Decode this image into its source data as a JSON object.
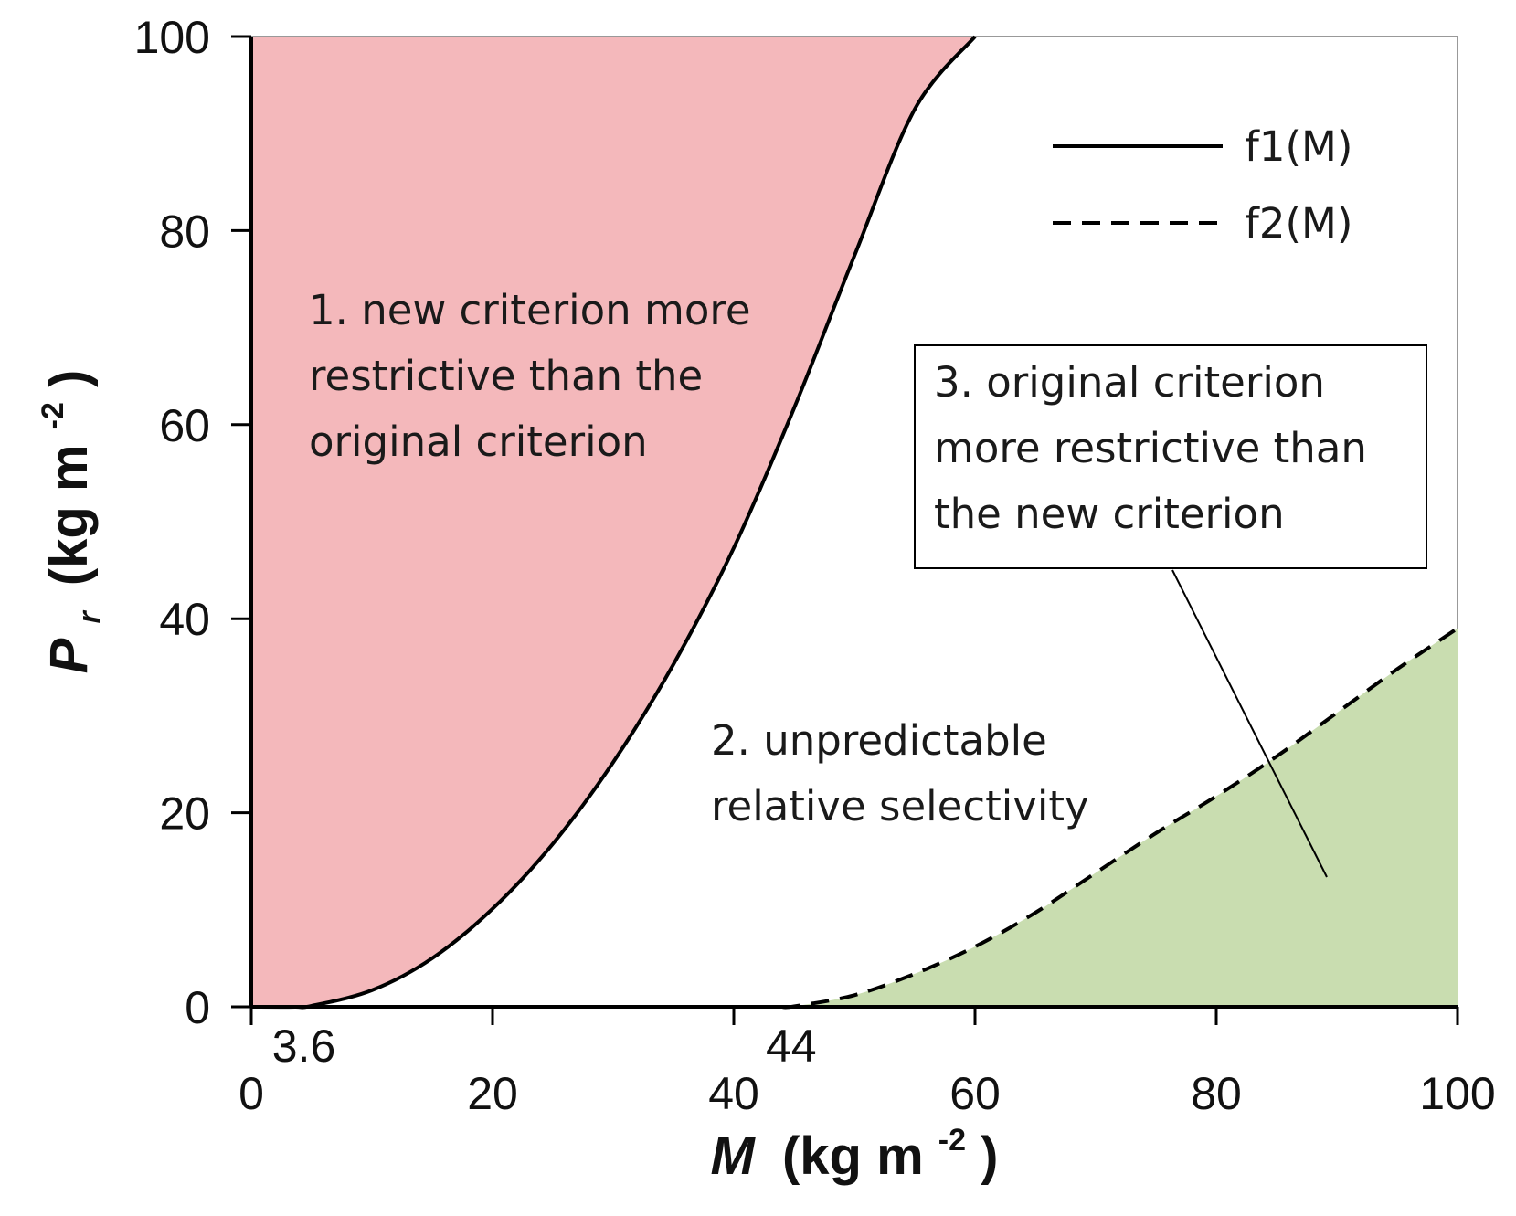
{
  "chart_data": {
    "type": "area",
    "xlabel": {
      "var": "M",
      "unit": "(kg m",
      "exp": "-2",
      "close": ")"
    },
    "ylabel": {
      "var": "P",
      "sub": "r",
      "unit": "(kg m",
      "exp": "-2",
      "close": ")"
    },
    "xlim": [
      0,
      100
    ],
    "ylim": [
      0,
      100
    ],
    "xticks": [
      0,
      20,
      40,
      60,
      80,
      100
    ],
    "yticks": [
      0,
      20,
      40,
      60,
      80,
      100
    ],
    "special_xticks": [
      {
        "value": 3.6,
        "label": "3.6"
      },
      {
        "value": 44,
        "label": "44"
      }
    ],
    "series": [
      {
        "name": "f1(M)",
        "style": "solid",
        "color": "#000000",
        "x": [
          0,
          3.6,
          5,
          10,
          15,
          20,
          25,
          30,
          35,
          40,
          45,
          50,
          55,
          60,
          62.5
        ],
        "y": [
          0,
          0,
          0.1,
          1.7,
          5,
          10.1,
          16.8,
          25.2,
          35.3,
          47.3,
          61.7,
          77.4,
          92.5,
          100,
          100
        ]
      },
      {
        "name": "f2(M)",
        "style": "dashed",
        "color": "#000000",
        "x": [
          44,
          45,
          50,
          55,
          60,
          65,
          70,
          75,
          80,
          85,
          90,
          95,
          100
        ],
        "y": [
          0,
          0.05,
          1.2,
          3.4,
          6.2,
          9.7,
          13.8,
          17.9,
          21.7,
          25.8,
          30.3,
          34.8,
          39
        ]
      }
    ],
    "regions": [
      {
        "id": 1,
        "color": "#f4b8bb",
        "lines": [
          "1. new criterion more",
          "restrictive than the",
          "original criterion"
        ]
      },
      {
        "id": 2,
        "color": "#ffffff",
        "lines": [
          "2. unpredictable",
          "relative selectivity"
        ]
      },
      {
        "id": 3,
        "color": "#c9ddb0",
        "lines": [
          "3. original criterion",
          "more restrictive than",
          "the new criterion"
        ]
      }
    ],
    "legend": {
      "position": "top-right",
      "entries": [
        "f1(M)",
        "f2(M)"
      ]
    }
  }
}
